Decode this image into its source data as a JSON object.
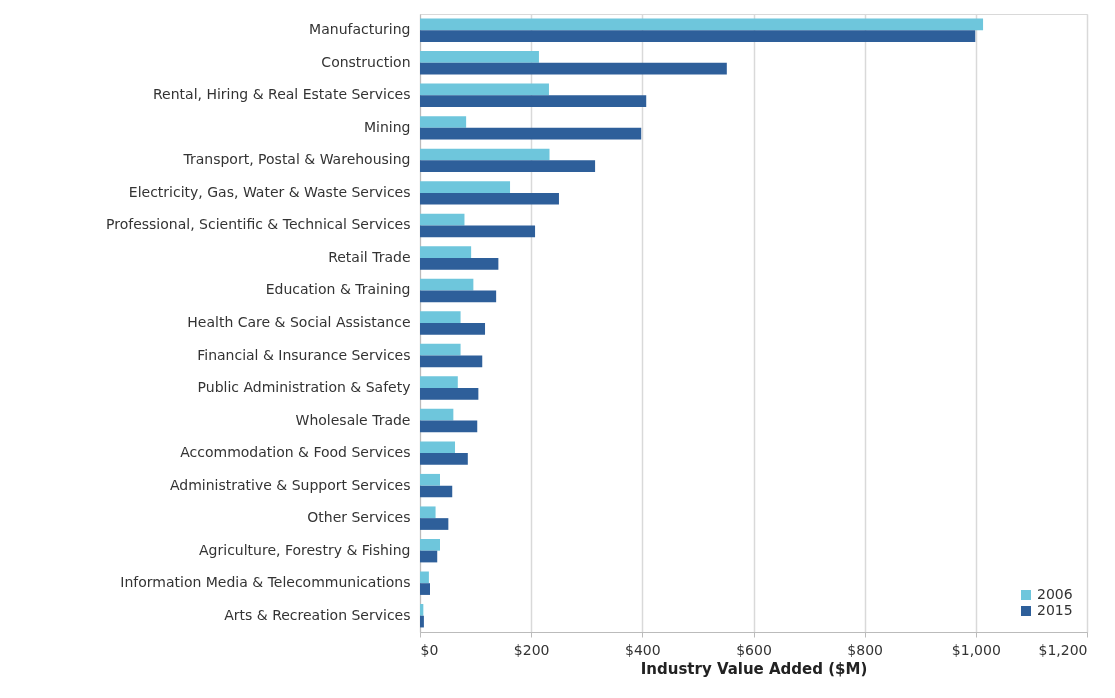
{
  "chart_data": {
    "type": "bar",
    "orientation": "horizontal",
    "xlabel": "Industry Value Added ($M)",
    "categories": [
      "Manufacturing",
      "Construction",
      "Rental, Hiring & Real Estate Services",
      "Mining",
      "Transport, Postal & Warehousing",
      "Electricity, Gas, Water & Waste Services",
      "Professional, Scientific & Technical Services",
      "Retail Trade",
      "Education & Training",
      "Health Care & Social Assistance",
      "Financial & Insurance Services",
      "Public Administration & Safety",
      "Wholesale Trade",
      "Accommodation & Food Services",
      "Administrative & Support Services",
      "Other Services",
      "Agriculture, Forestry & Fishing",
      "Information Media & Telecommunications",
      "Arts & Recreation Services"
    ],
    "series": [
      {
        "name": "2006",
        "color": "#6ec6dc",
        "values": [
          1013,
          214,
          232,
          83,
          233,
          162,
          80,
          92,
          96,
          73,
          73,
          68,
          60,
          63,
          36,
          28,
          36,
          16,
          6
        ]
      },
      {
        "name": "2015",
        "color": "#2e5f9a",
        "values": [
          999,
          552,
          407,
          398,
          315,
          250,
          207,
          141,
          137,
          117,
          112,
          105,
          103,
          86,
          58,
          51,
          31,
          18,
          7
        ]
      }
    ],
    "xlim": [
      0,
      1200
    ],
    "xticks": [
      {
        "value": 0,
        "label": "$0"
      },
      {
        "value": 200,
        "label": "$200"
      },
      {
        "value": 400,
        "label": "$400"
      },
      {
        "value": 600,
        "label": "$600"
      },
      {
        "value": 800,
        "label": "$800"
      },
      {
        "value": 1000,
        "label": "$1,000"
      },
      {
        "value": 1200,
        "label": "$1,200"
      }
    ],
    "grid": "x",
    "legend": "bottom right"
  }
}
